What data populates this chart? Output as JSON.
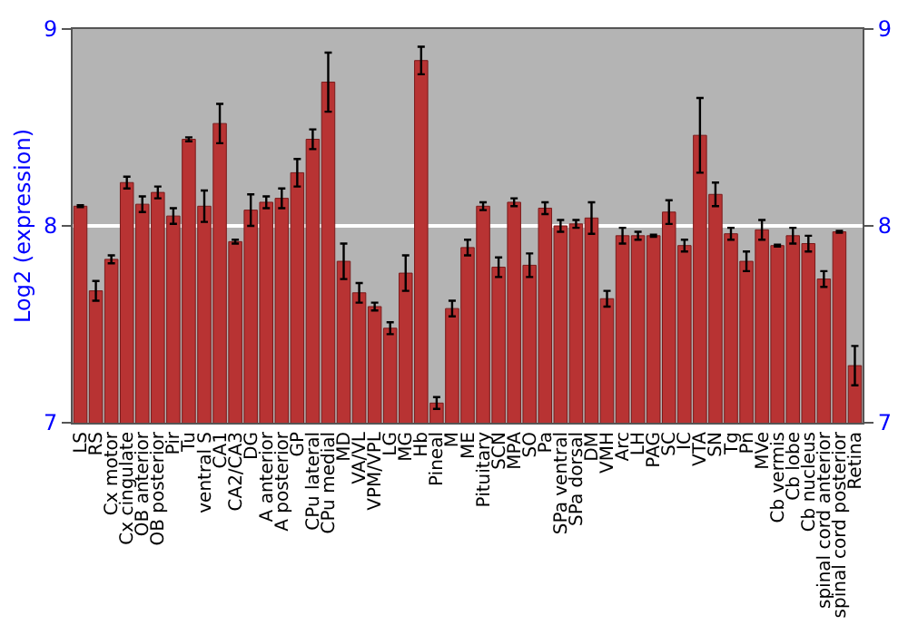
{
  "chart_data": {
    "type": "bar",
    "ylabel": "Log2 (expression)",
    "categories": [
      "LS",
      "RS",
      "Cx motor",
      "Cx cingulate",
      "OB anterior",
      "OB posterior",
      "Pir",
      "Tu",
      "ventral S",
      "CA1",
      "CA2/CA3",
      "DG",
      "A anterior",
      "A posterior",
      "GP",
      "CPu lateral",
      "CPu medial",
      "MD",
      "VA/VL",
      "VPM/VPL",
      "LG",
      "MG",
      "Hb",
      "Pineal",
      "M",
      "ME",
      "Pituitary",
      "SCN",
      "MPA",
      "SO",
      "Pa",
      "SPa ventral",
      "SPa dorsal",
      "DM",
      "VMH",
      "Arc",
      "LH",
      "PAG",
      "SC",
      "IC",
      "VTA",
      "SN",
      "Tg",
      "Pn",
      "MVe",
      "Cb vermis",
      "Cb lobe",
      "Cb nucleus",
      "spinal cord anterior",
      "spinal cord posterior",
      "Retina"
    ],
    "values": [
      8.1,
      7.67,
      7.83,
      8.22,
      8.11,
      8.17,
      8.05,
      8.44,
      8.1,
      8.52,
      7.92,
      8.08,
      8.12,
      8.14,
      8.27,
      8.44,
      8.73,
      7.82,
      7.66,
      7.59,
      7.48,
      7.76,
      8.84,
      7.1,
      7.58,
      7.89,
      8.1,
      7.79,
      8.12,
      7.8,
      8.09,
      8.0,
      8.01,
      8.04,
      7.63,
      7.95,
      7.95,
      7.95,
      8.07,
      7.9,
      8.46,
      8.16,
      7.96,
      7.82,
      7.98,
      7.9,
      7.95,
      7.91,
      7.73,
      7.97,
      7.29
    ],
    "errors": [
      0.005,
      0.05,
      0.02,
      0.03,
      0.04,
      0.03,
      0.04,
      0.01,
      0.08,
      0.1,
      0.01,
      0.08,
      0.03,
      0.05,
      0.07,
      0.05,
      0.15,
      0.09,
      0.05,
      0.02,
      0.03,
      0.09,
      0.07,
      0.03,
      0.04,
      0.04,
      0.02,
      0.05,
      0.02,
      0.06,
      0.03,
      0.03,
      0.02,
      0.08,
      0.04,
      0.04,
      0.02,
      0.005,
      0.06,
      0.03,
      0.19,
      0.06,
      0.03,
      0.05,
      0.05,
      0.005,
      0.04,
      0.04,
      0.04,
      0.005,
      0.1
    ],
    "color": "#b83333",
    "ylim": [
      7,
      9
    ],
    "yticks": [
      7,
      8,
      9
    ],
    "y2lim": [
      7,
      9
    ],
    "y2ticks": [
      7,
      8,
      9
    ],
    "grid": "y"
  }
}
